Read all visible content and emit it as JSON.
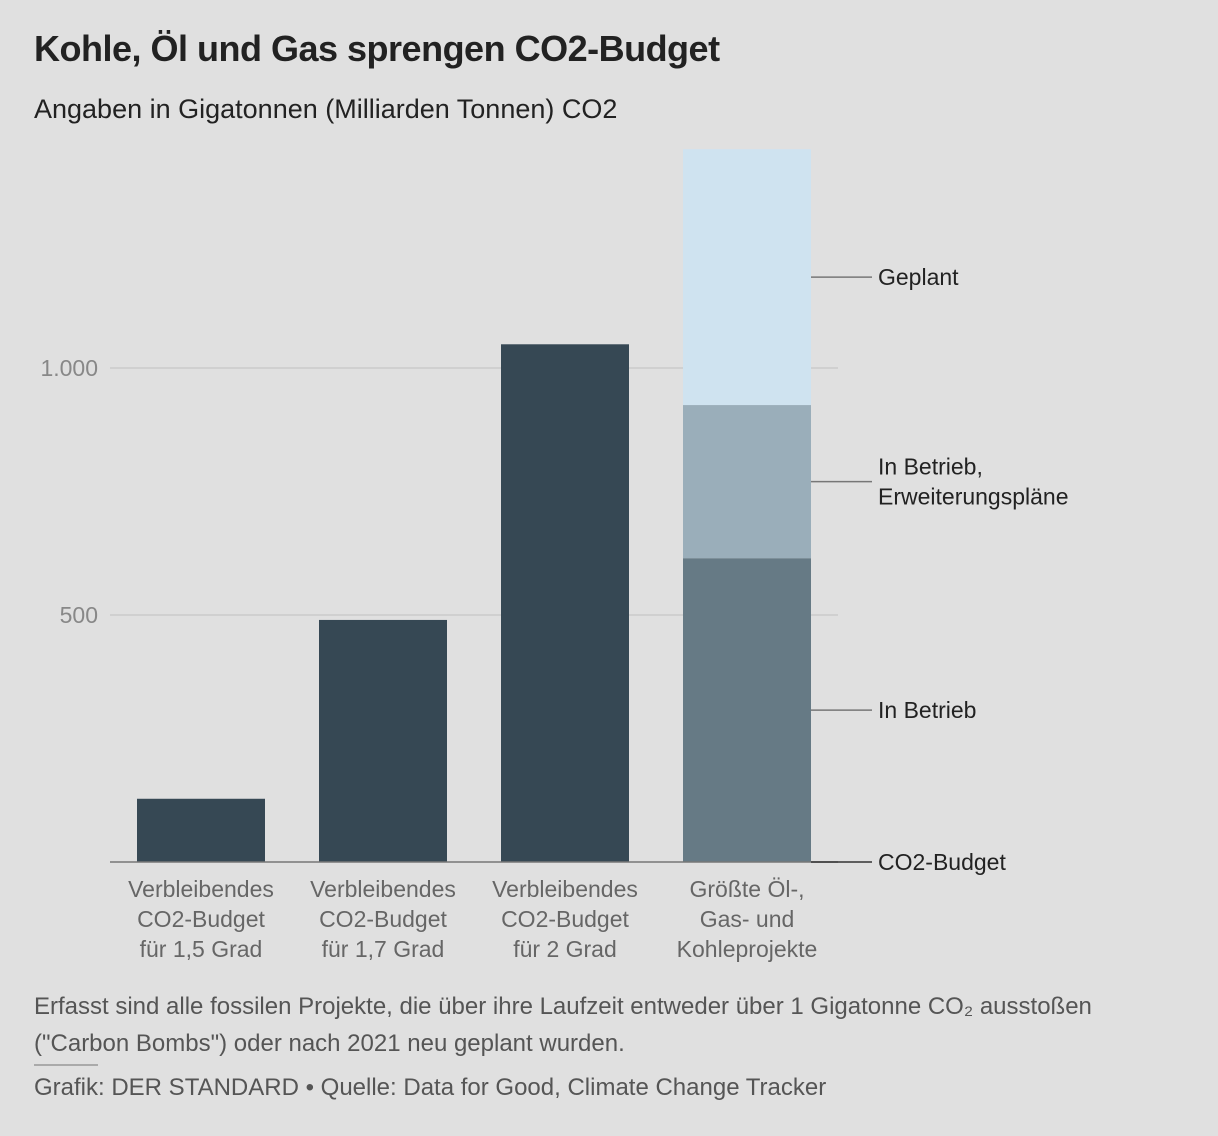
{
  "header": {
    "title": "Kohle, Öl und Gas sprengen CO2-Budget",
    "subtitle": "Angaben in Gigatonnen (Milliarden Tonnen) CO2"
  },
  "chart_data": {
    "type": "bar",
    "stacked": true,
    "ylim": [
      0,
      1450
    ],
    "yticks": [
      500,
      1000
    ],
    "ytick_labels": [
      "500",
      "1.000"
    ],
    "grid": true,
    "categories": [
      "Verbleibendes CO2-Budget für 1,5 Grad",
      "Verbleibendes CO2-Budget für 1,7 Grad",
      "Verbleibendes CO2-Budget für 2 Grad",
      "Größte Öl-, Gas- und Kohleprojekte"
    ],
    "category_lines": [
      [
        "Verbleibendes",
        "CO2-Budget",
        "für 1,5 Grad"
      ],
      [
        "Verbleibendes",
        "CO2-Budget",
        "für 1,7 Grad"
      ],
      [
        "Verbleibendes",
        "CO2-Budget",
        "für 2 Grad"
      ],
      [
        "Größte Öl-,",
        "Gas- und",
        "Kohleprojekte"
      ]
    ],
    "series": [
      {
        "name": "CO2-Budget",
        "values": [
          128,
          490,
          1048,
          0
        ],
        "color": "#364854"
      },
      {
        "name": "In Betrieb",
        "values": [
          0,
          0,
          0,
          615
        ],
        "color": "#667a85"
      },
      {
        "name": "In Betrieb, Erweiterungspläne",
        "values": [
          0,
          0,
          0,
          310
        ],
        "color": "#9aaeba"
      },
      {
        "name": "Geplant",
        "values": [
          0,
          0,
          0,
          518
        ],
        "color": "#cfe3f0"
      }
    ],
    "annotation_lines": [
      [
        "CO2-Budget"
      ],
      [
        "In Betrieb"
      ],
      [
        "In Betrieb,",
        "Erweiterungspläne"
      ],
      [
        "Geplant"
      ]
    ]
  },
  "footer": {
    "note": "Erfasst sind alle fossilen Projekte, die über ihre Laufzeit entweder über 1 Gigatonne CO₂ ausstoßen (\"Carbon Bombs\") oder nach 2021 neu geplant wurden.",
    "source": "Grafik: DER STANDARD • Quelle: Data for Good, Climate Change Tracker"
  }
}
